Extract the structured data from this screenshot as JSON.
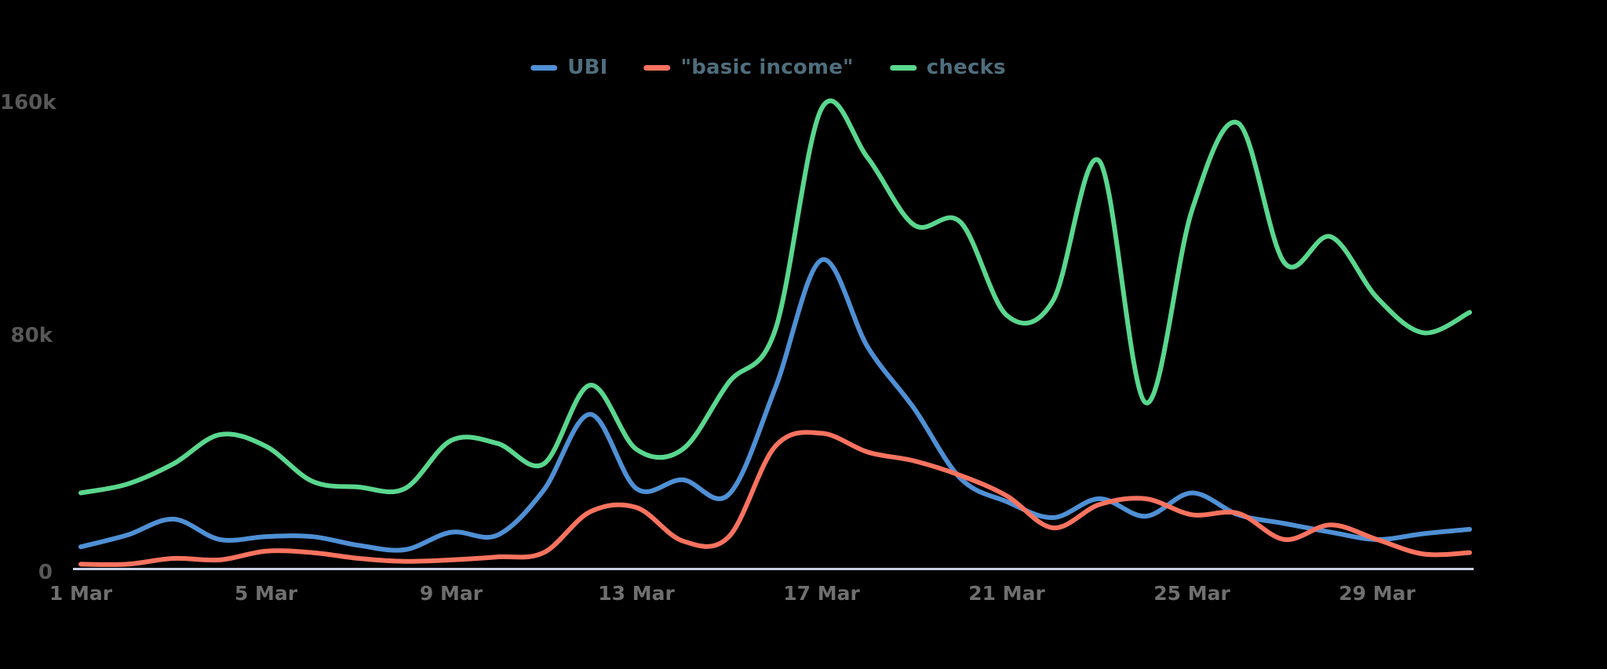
{
  "page": {
    "background": "#000000"
  },
  "legend": {
    "text_color": "#4f6e7d",
    "items": [
      {
        "label": "UBI",
        "color": "#4f90d5"
      },
      {
        "label": "\"basic income\"",
        "color": "#f9735f"
      },
      {
        "label": "checks",
        "color": "#5ad78e"
      }
    ]
  },
  "axes": {
    "y_label_color": "#585858",
    "x_label_color": "#6f6f6f",
    "axis_line_color": "#c6d2e3",
    "y_ticks": [
      {
        "label": "160k",
        "value": 160000
      },
      {
        "label": "80k",
        "value": 80000
      },
      {
        "label": "0",
        "value": 0
      }
    ],
    "x_ticks": [
      {
        "label": "1 Mar",
        "index": 0
      },
      {
        "label": "5 Mar",
        "index": 4
      },
      {
        "label": "9 Mar",
        "index": 8
      },
      {
        "label": "13 Mar",
        "index": 12
      },
      {
        "label": "17 Mar",
        "index": 16
      },
      {
        "label": "21 Mar",
        "index": 20
      },
      {
        "label": "25 Mar",
        "index": 24
      },
      {
        "label": "29 Mar",
        "index": 28
      }
    ]
  },
  "chart_data": {
    "type": "line",
    "title": "",
    "xlabel": "",
    "ylabel": "",
    "ylim": [
      0,
      195000
    ],
    "grid": false,
    "legend_position": "top-center",
    "curve": "smooth-spline",
    "x": [
      "1 Mar",
      "2 Mar",
      "3 Mar",
      "4 Mar",
      "5 Mar",
      "6 Mar",
      "7 Mar",
      "8 Mar",
      "9 Mar",
      "10 Mar",
      "11 Mar",
      "12 Mar",
      "13 Mar",
      "14 Mar",
      "15 Mar",
      "16 Mar",
      "17 Mar",
      "18 Mar",
      "19 Mar",
      "20 Mar",
      "21 Mar",
      "22 Mar",
      "23 Mar",
      "24 Mar",
      "25 Mar",
      "26 Mar",
      "27 Mar",
      "28 Mar",
      "29 Mar",
      "30 Mar",
      "31 Mar"
    ],
    "series": [
      {
        "name": "UBI",
        "color": "#4f90d5",
        "values": [
          7500,
          11500,
          17000,
          10000,
          11000,
          11000,
          8000,
          6500,
          12500,
          11500,
          27000,
          53000,
          27500,
          30500,
          25500,
          62000,
          106000,
          76000,
          55000,
          31000,
          23000,
          17500,
          24000,
          18000,
          26000,
          18500,
          15500,
          12500,
          10000,
          12000,
          13500
        ]
      },
      {
        "name": "\"basic income\"",
        "color": "#f9735f",
        "values": [
          1500,
          1500,
          3500,
          3000,
          6000,
          5500,
          3500,
          2500,
          3000,
          4000,
          5500,
          19500,
          21000,
          9500,
          11000,
          42000,
          46500,
          40000,
          37000,
          32000,
          25000,
          14000,
          22000,
          24000,
          18500,
          19000,
          10000,
          15000,
          10000,
          5000,
          5500
        ]
      },
      {
        "name": "checks",
        "color": "#5ad78e",
        "values": [
          26000,
          29000,
          36000,
          46000,
          42000,
          30000,
          28000,
          27500,
          44000,
          43000,
          36000,
          63000,
          41000,
          41000,
          64000,
          82000,
          158000,
          141000,
          118000,
          119000,
          87000,
          92000,
          140000,
          57000,
          123000,
          153000,
          105000,
          114000,
          93000,
          81000,
          88000
        ]
      }
    ]
  }
}
